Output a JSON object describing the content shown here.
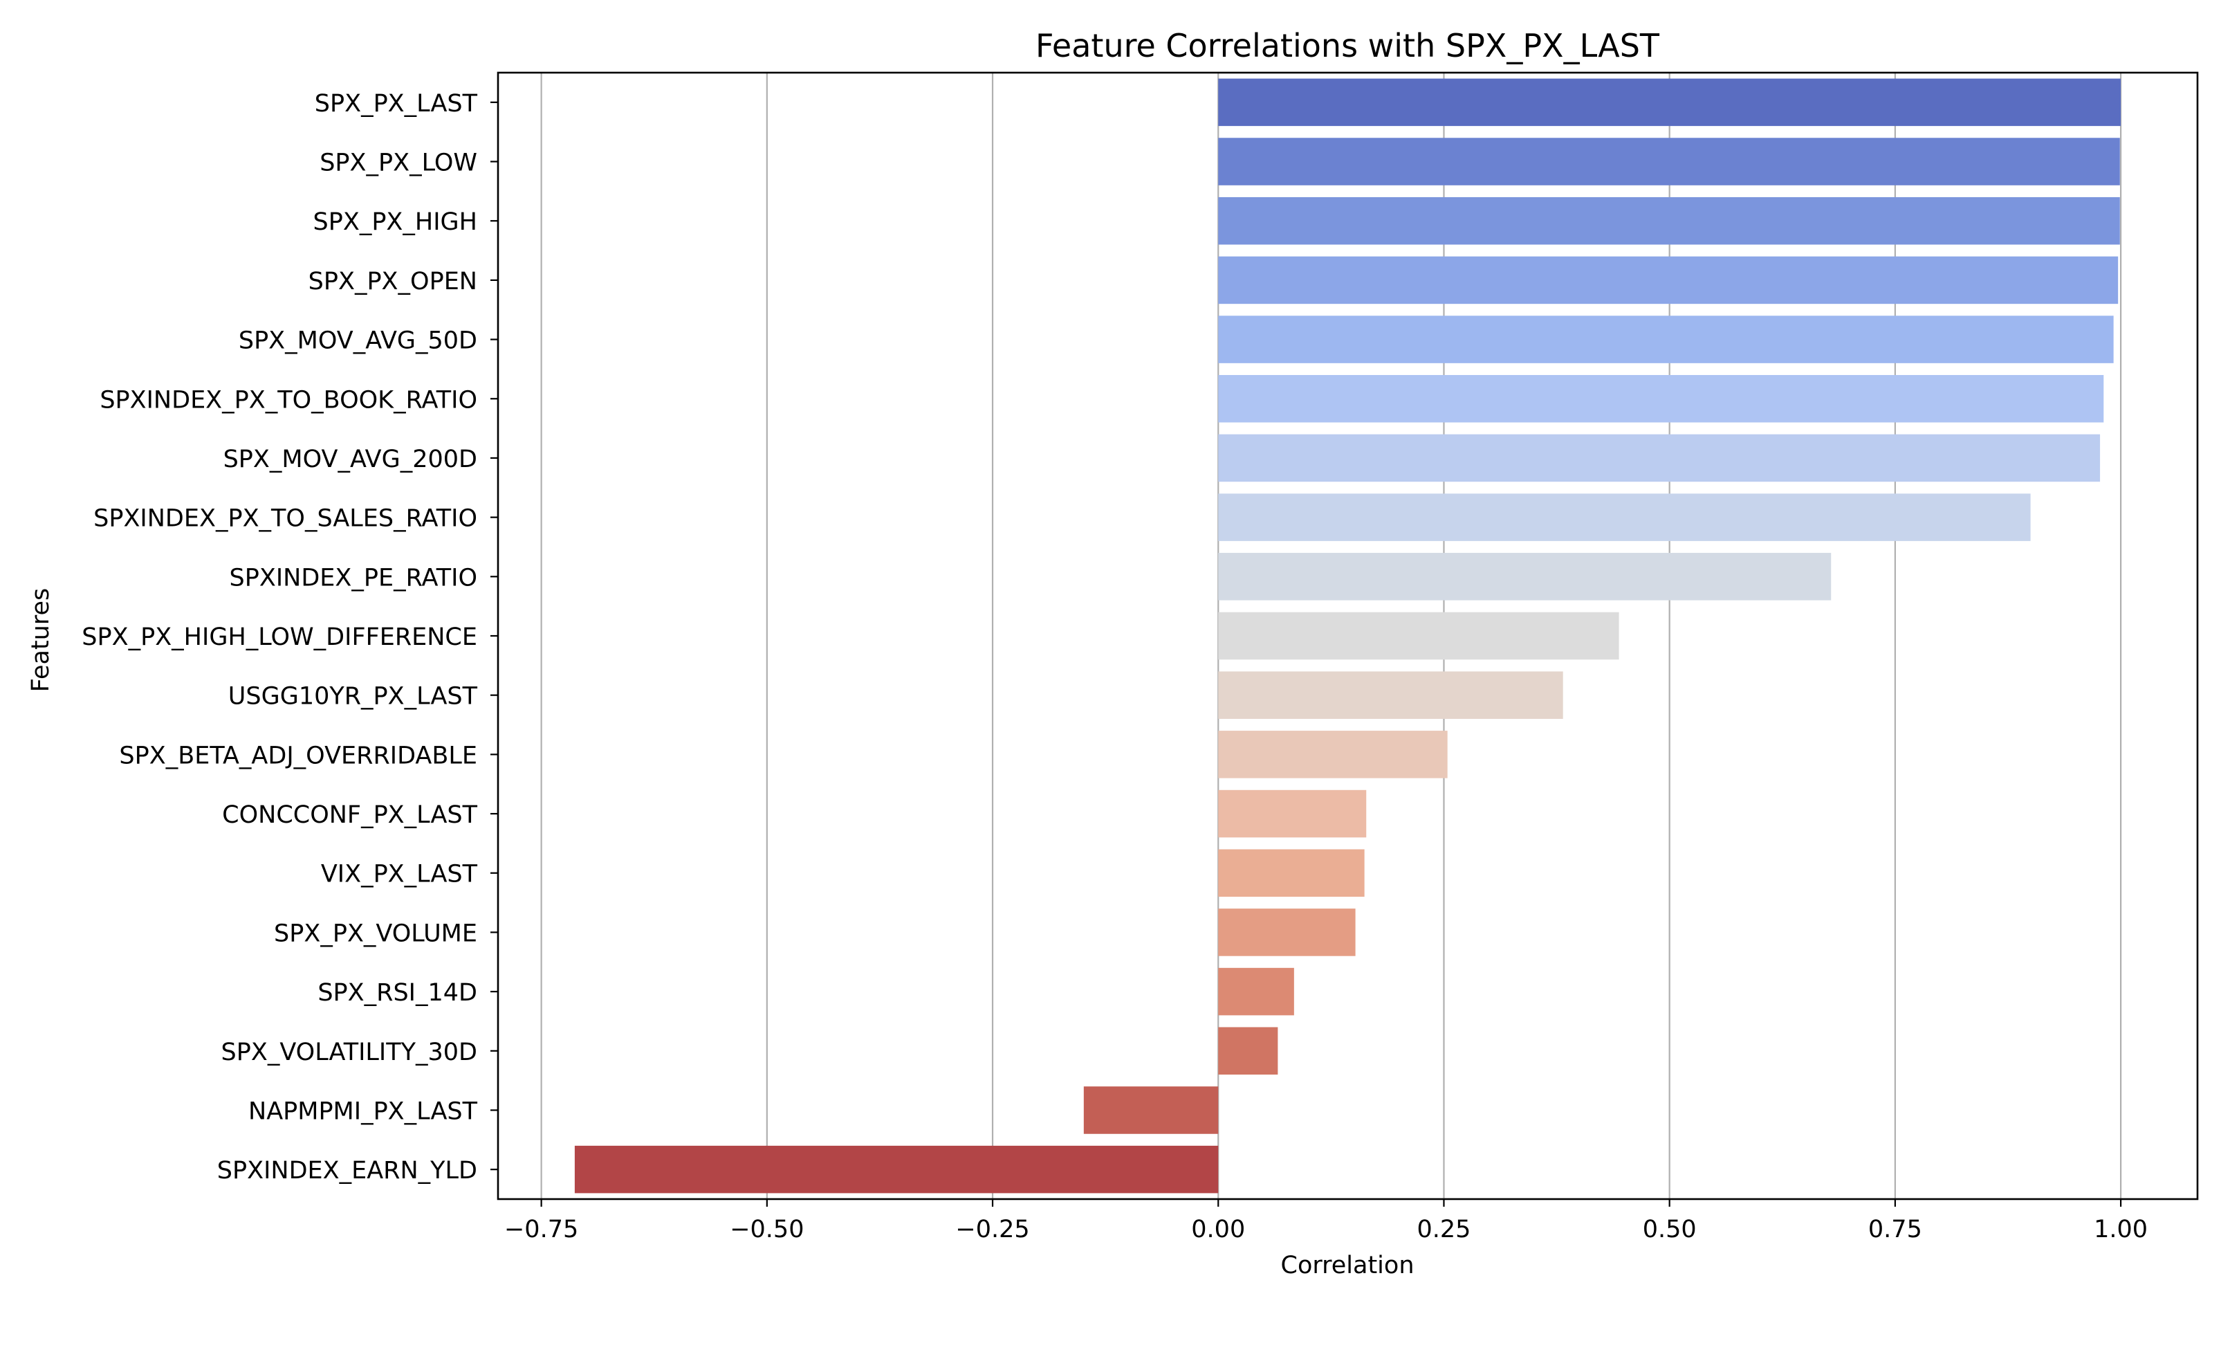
{
  "chart_data": {
    "type": "bar",
    "orientation": "horizontal",
    "title": "Feature Correlations with SPX_PX_LAST",
    "xlabel": "Correlation",
    "ylabel": "Features",
    "xlim": [
      -0.798,
      1.085
    ],
    "grid": "x",
    "legend": null,
    "xticks": [
      -0.75,
      -0.5,
      -0.25,
      0.0,
      0.25,
      0.5,
      0.75,
      1.0
    ],
    "xtick_labels": [
      "−0.75",
      "−0.50",
      "−0.25",
      "0.00",
      "0.25",
      "0.50",
      "0.75",
      "1.00"
    ],
    "categories": [
      "SPX_PX_LAST",
      "SPX_PX_LOW",
      "SPX_PX_HIGH",
      "SPX_PX_OPEN",
      "SPX_MOV_AVG_50D",
      "SPXINDEX_PX_TO_BOOK_RATIO",
      "SPX_MOV_AVG_200D",
      "SPXINDEX_PX_TO_SALES_RATIO",
      "SPXINDEX_PE_RATIO",
      "SPX_PX_HIGH_LOW_DIFFERENCE",
      "USGG10YR_PX_LAST",
      "SPX_BETA_ADJ_OVERRIDABLE",
      "CONCCONF_PX_LAST",
      "VIX_PX_LAST",
      "SPX_PX_VOLUME",
      "SPX_RSI_14D",
      "SPX_VOLATILITY_30D",
      "NAPMPMI_PX_LAST",
      "SPXINDEX_EARN_YLD"
    ],
    "values": [
      1.0,
      0.999,
      0.999,
      0.997,
      0.992,
      0.981,
      0.977,
      0.9,
      0.679,
      0.444,
      0.382,
      0.254,
      0.164,
      0.162,
      0.152,
      0.084,
      0.066,
      -0.149,
      -0.713
    ],
    "colors": [
      "#5a6dc1",
      "#6b82d1",
      "#7b95dd",
      "#8ca6e8",
      "#9db7f0",
      "#aec4f3",
      "#bbccf0",
      "#c7d4ec",
      "#d3dae4",
      "#dcdcdc",
      "#e4d5cc",
      "#e9c8b8",
      "#ecbba6",
      "#eaae94",
      "#e49d84",
      "#dc8a73",
      "#d07563",
      "#c35f55",
      "#b24547"
    ]
  }
}
